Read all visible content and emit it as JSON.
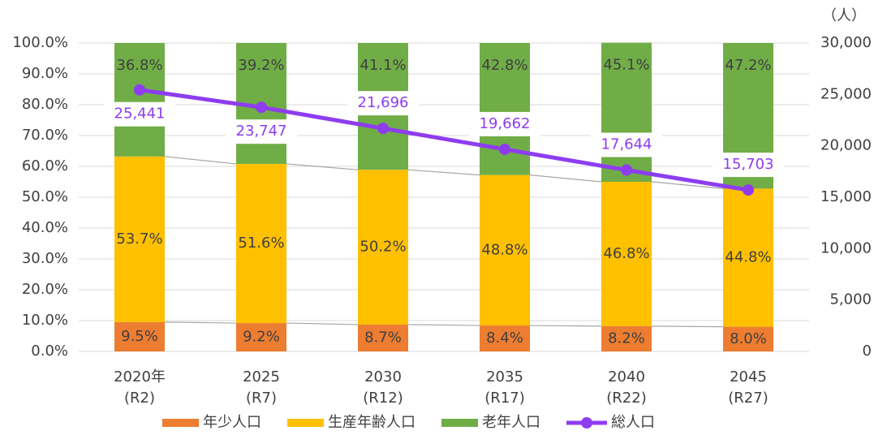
{
  "chart_data": {
    "type": "stacked-bar-line",
    "categories": [
      [
        "2020年",
        "(R2)"
      ],
      [
        "2025",
        "(R7)"
      ],
      [
        "2030",
        "(R12)"
      ],
      [
        "2035",
        "(R17)"
      ],
      [
        "2040",
        "(R22)"
      ],
      [
        "2045",
        "(R27)"
      ]
    ],
    "series": [
      {
        "name": "年少人口",
        "color": "#ED7D31",
        "values": [
          9.5,
          9.2,
          8.7,
          8.4,
          8.2,
          8.0
        ],
        "value_labels": [
          "9.5%",
          "9.2%",
          "8.7%",
          "8.4%",
          "8.2%",
          "8.0%"
        ]
      },
      {
        "name": "生産年齢人口",
        "color": "#FFC000",
        "values": [
          53.7,
          51.6,
          50.2,
          48.8,
          46.8,
          44.8
        ],
        "value_labels": [
          "53.7%",
          "51.6%",
          "50.2%",
          "48.8%",
          "46.8%",
          "44.8%"
        ]
      },
      {
        "name": "老年人口",
        "color": "#70AD47",
        "values": [
          36.8,
          39.2,
          41.1,
          42.8,
          45.1,
          47.2
        ],
        "value_labels": [
          "36.8%",
          "39.2%",
          "41.1%",
          "42.8%",
          "45.1%",
          "47.2%"
        ]
      },
      {
        "name": "総人口",
        "color": "#8E3CF0",
        "axis": "y2",
        "values": [
          25441,
          23747,
          21696,
          19662,
          17644,
          15703
        ],
        "value_labels": [
          "25,441",
          "23,747",
          "21,696",
          "19,662",
          "17,644",
          "15,703"
        ]
      }
    ],
    "ylim": [
      0,
      100
    ],
    "yticks": [
      {
        "value": 0,
        "label": "0.0%"
      },
      {
        "value": 10,
        "label": "10.0%"
      },
      {
        "value": 20,
        "label": "20.0%"
      },
      {
        "value": 30,
        "label": "30.0%"
      },
      {
        "value": 40,
        "label": "40.0%"
      },
      {
        "value": 50,
        "label": "50.0%"
      },
      {
        "value": 60,
        "label": "60.0%"
      },
      {
        "value": 70,
        "label": "70.0%"
      },
      {
        "value": 80,
        "label": "80.0%"
      },
      {
        "value": 90,
        "label": "90.0%"
      },
      {
        "value": 100,
        "label": "100.0%"
      }
    ],
    "y2lim": [
      0,
      30000
    ],
    "y2ticks": [
      0,
      {
        "value": 5000,
        "label": "5,000"
      },
      {
        "value": 10000,
        "label": "10,000"
      },
      {
        "value": 15000,
        "label": "15,000"
      },
      {
        "value": 20000,
        "label": "20,000"
      },
      {
        "value": 25000,
        "label": "25,000"
      },
      {
        "value": 30000,
        "label": "30,000"
      }
    ],
    "y2_unit": "（人）",
    "grid": true,
    "legend": "bottom"
  }
}
